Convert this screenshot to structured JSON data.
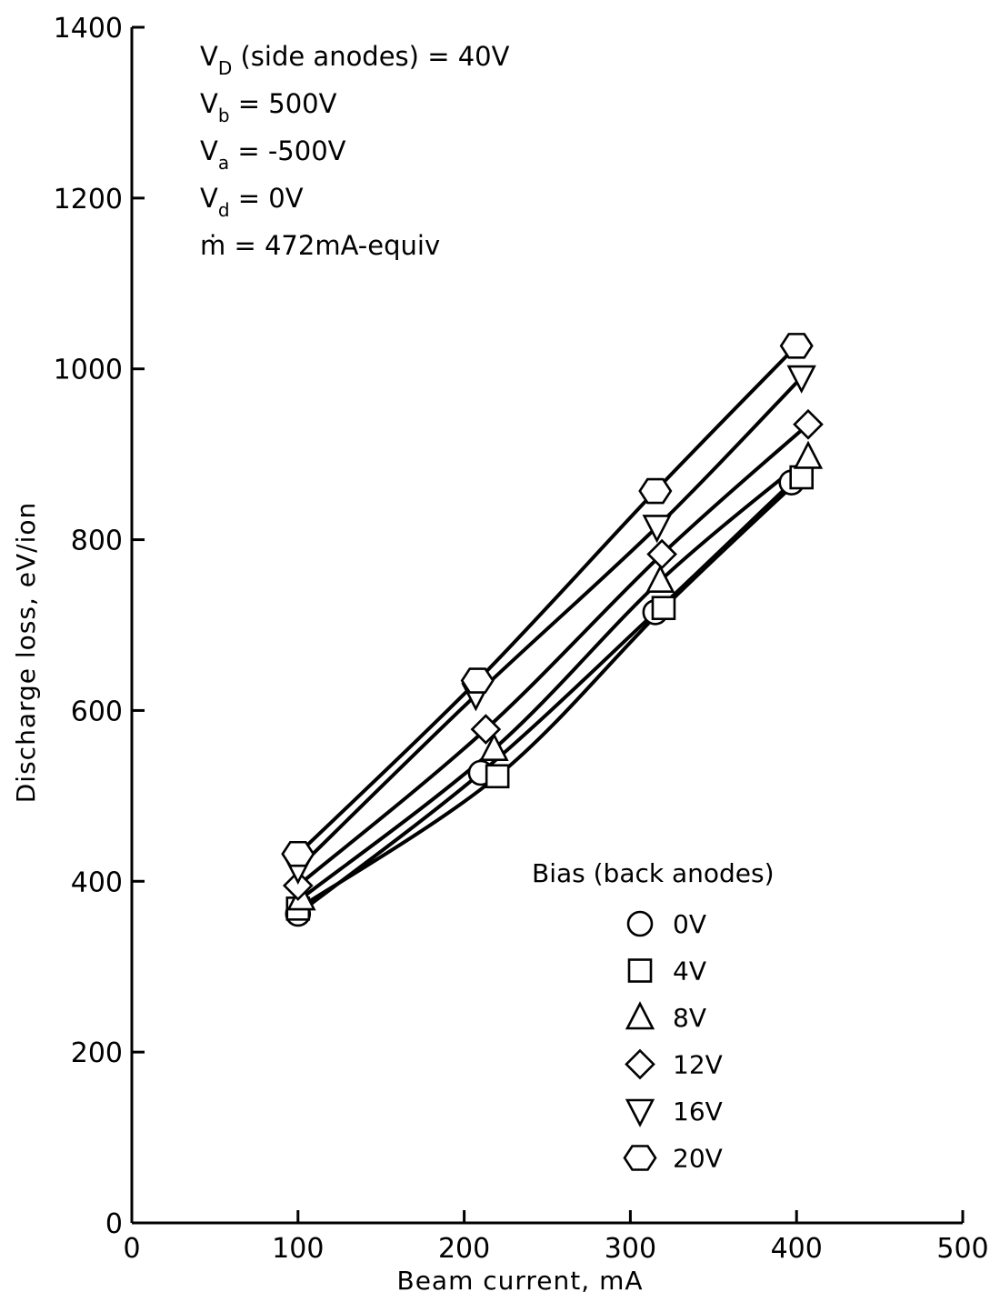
{
  "chart_data": {
    "type": "line",
    "xlabel": "Beam current, mA",
    "ylabel": "Discharge loss, eV/ion",
    "xlim": [
      0,
      500
    ],
    "ylim": [
      0,
      1400
    ],
    "xticks": [
      0,
      100,
      200,
      300,
      400,
      500
    ],
    "yticks": [
      0,
      200,
      400,
      600,
      800,
      1000,
      1200,
      1400
    ],
    "grid": false,
    "legend": {
      "title": "Bias (back anodes)",
      "placement": "lower-right"
    },
    "annotations": [
      {
        "main": "V",
        "sub": "D",
        "rest": " (side anodes) = 40V"
      },
      {
        "main": "V",
        "sub": "b",
        "rest": " =  500V"
      },
      {
        "main": "V",
        "sub": "a",
        "rest": " = -500V"
      },
      {
        "main": "V",
        "sub": "d",
        "rest": " =     0V"
      },
      {
        "main": "ṁ",
        "sub": "",
        "rest": " = 472mA-equiv"
      }
    ],
    "series": [
      {
        "name": "0V",
        "marker": "circle",
        "x": [
          100,
          210,
          315,
          397
        ],
        "y": [
          362,
          527,
          715,
          867
        ]
      },
      {
        "name": "4V",
        "marker": "square",
        "x": [
          100,
          220,
          320,
          403
        ],
        "y": [
          368,
          523,
          720,
          873
        ]
      },
      {
        "name": "8V",
        "marker": "triangle-up",
        "x": [
          102,
          218,
          318,
          407
        ],
        "y": [
          380,
          555,
          752,
          897
        ]
      },
      {
        "name": "12V",
        "marker": "diamond",
        "x": [
          100,
          213,
          319,
          407
        ],
        "y": [
          395,
          578,
          783,
          935
        ]
      },
      {
        "name": "16V",
        "marker": "triangle-down",
        "x": [
          100,
          207,
          316,
          403
        ],
        "y": [
          415,
          618,
          815,
          990
        ]
      },
      {
        "name": "20V",
        "marker": "hexagon",
        "x": [
          100,
          208,
          315,
          400
        ],
        "y": [
          432,
          635,
          857,
          1027
        ]
      }
    ]
  }
}
